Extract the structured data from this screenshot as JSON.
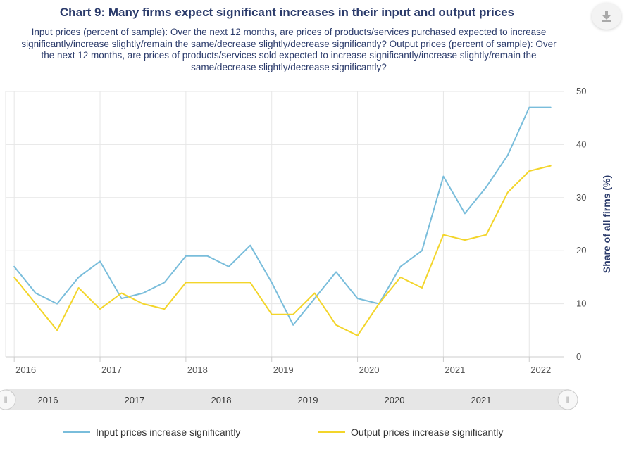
{
  "header": {
    "title": "Chart 9: Many firms expect significant increases in their input and output prices",
    "subtitle": "Input prices (percent of sample): Over the next 12 months, are prices of products/services purchased expected to increase significantly/increase slightly/remain the same/decrease slightly/decrease significantly? Output prices (percent of sample): Over the next 12 months, are prices of products/services sold expected to increase significantly/increase slightly/remain the same/decrease slightly/decrease significantly?"
  },
  "toolbar": {
    "download_icon": "download-icon"
  },
  "colors": {
    "input": "#79bddb",
    "output": "#f3d52a",
    "grid": "#e6e6e6",
    "navigator_bg": "#e6e6e6",
    "title": "#2b3b6b"
  },
  "chart_data": {
    "type": "line",
    "title": "Chart 9: Many firms expect significant increases in their input and output prices",
    "xlabel": "",
    "ylabel": "Share of all firms (%)",
    "ylim": [
      0,
      50
    ],
    "yticks": [
      0,
      10,
      20,
      30,
      40,
      50
    ],
    "xlim": [
      2015.9,
      2022.4
    ],
    "xticks": [
      "2016",
      "2017",
      "2018",
      "2019",
      "2020",
      "2021",
      "2022"
    ],
    "grid": true,
    "legend_position": "bottom",
    "x": [
      2016.0,
      2016.25,
      2016.5,
      2016.75,
      2017.0,
      2017.25,
      2017.5,
      2017.75,
      2018.0,
      2018.25,
      2018.5,
      2018.75,
      2019.0,
      2019.25,
      2019.5,
      2019.75,
      2020.0,
      2020.25,
      2020.5,
      2020.75,
      2021.0,
      2021.25,
      2021.5,
      2021.75,
      2022.0,
      2022.25
    ],
    "series": [
      {
        "name": "Input prices increase significantly",
        "color": "#79bddb",
        "values": [
          17,
          12,
          10,
          15,
          18,
          11,
          12,
          14,
          19,
          19,
          17,
          21,
          14,
          6,
          11,
          16,
          11,
          10,
          17,
          20,
          34,
          27,
          32,
          38,
          47,
          47
        ]
      },
      {
        "name": "Output prices increase significantly",
        "color": "#f3d52a",
        "values": [
          15,
          10,
          5,
          13,
          9,
          12,
          10,
          9,
          14,
          14,
          14,
          14,
          8,
          8,
          12,
          6,
          4,
          10,
          15,
          13,
          23,
          22,
          23,
          31,
          35,
          36
        ]
      }
    ]
  },
  "navigator": {
    "years": [
      "2016",
      "2017",
      "2018",
      "2019",
      "2020",
      "2021"
    ],
    "left_handle": "‖",
    "right_handle": "‖"
  }
}
